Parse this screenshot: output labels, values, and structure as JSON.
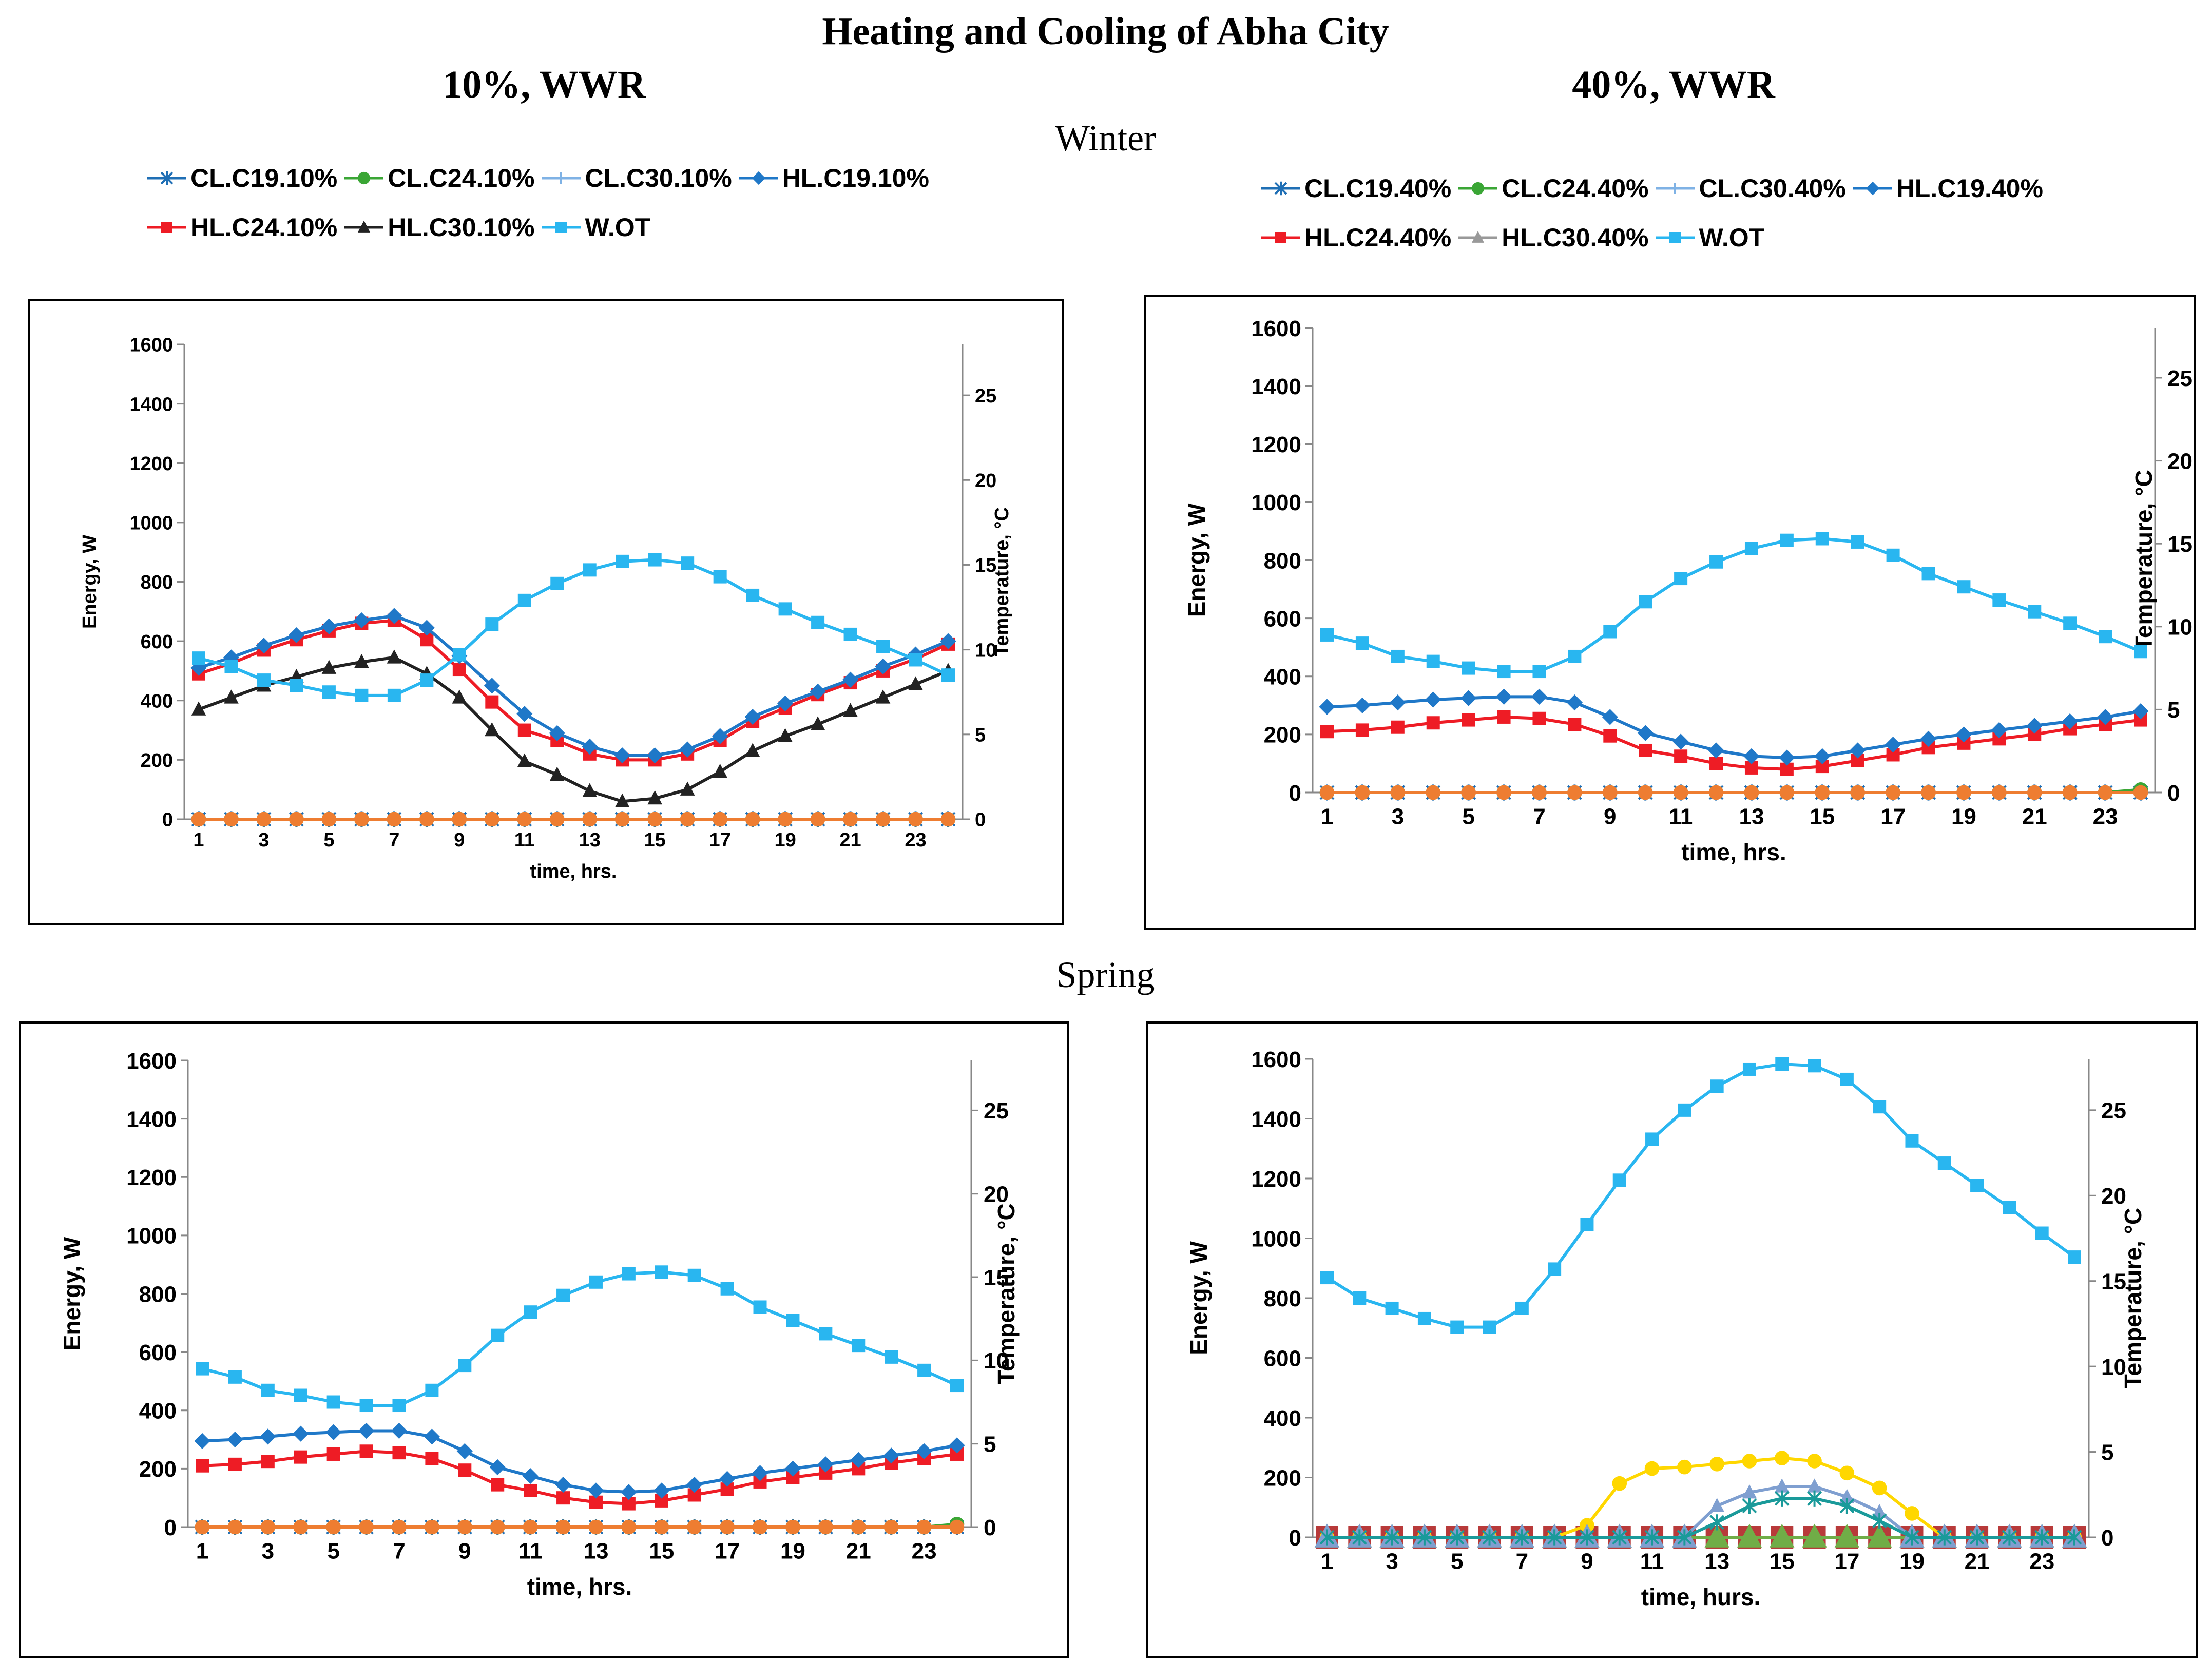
{
  "title": "Heating and Cooling of Abha City",
  "columns": {
    "left": "10%, WWR",
    "right": "40%, WWR"
  },
  "seasons": {
    "winter": "Winter",
    "spring": "Spring"
  },
  "legends": {
    "left": [
      {
        "label": "CL.C19.10%",
        "color": "#1f6fb5",
        "marker": "star"
      },
      {
        "label": "CL.C24.10%",
        "color": "#3aa635",
        "marker": "circle"
      },
      {
        "label": "CL.C30.10%",
        "color": "#7fb2e5",
        "marker": "plus"
      },
      {
        "label": "HL.C19.10%",
        "color": "#1f78c8",
        "marker": "diamond"
      },
      {
        "label": "HL.C24.10%",
        "color": "#ee1c25",
        "marker": "square"
      },
      {
        "label": "HL.C30.10%",
        "color": "#222222",
        "marker": "triangle"
      },
      {
        "label": "W.OT",
        "color": "#29b6f0",
        "marker": "square"
      }
    ],
    "right": [
      {
        "label": "CL.C19.40%",
        "color": "#1f6fb5",
        "marker": "star"
      },
      {
        "label": "CL.C24.40%",
        "color": "#3aa635",
        "marker": "circle"
      },
      {
        "label": "CL.C30.40%",
        "color": "#7fb2e5",
        "marker": "plus"
      },
      {
        "label": "HL.C19.40%",
        "color": "#1f78c8",
        "marker": "diamond"
      },
      {
        "label": "HL.C24.40%",
        "color": "#ee1c25",
        "marker": "square"
      },
      {
        "label": "HL.C30.40%",
        "color": "#999999",
        "marker": "triangle"
      },
      {
        "label": "W.OT",
        "color": "#29b6f0",
        "marker": "square"
      }
    ]
  },
  "chart_data": [
    {
      "id": "winter-10",
      "type": "line",
      "xlabel": "time, hrs.",
      "ylabel": "Energy, W",
      "y2label": "Temperature, °C",
      "x": [
        1,
        2,
        3,
        4,
        5,
        6,
        7,
        8,
        9,
        10,
        11,
        12,
        13,
        14,
        15,
        16,
        17,
        18,
        19,
        20,
        21,
        22,
        23,
        24
      ],
      "xticks": [
        "1",
        "3",
        "5",
        "7",
        "9",
        "11",
        "13",
        "15",
        "17",
        "19",
        "21",
        "23"
      ],
      "ylim": [
        0,
        1600
      ],
      "yticks": [
        "0",
        "200",
        "400",
        "600",
        "800",
        "1000",
        "1200",
        "1400",
        "1600"
      ],
      "y2lim": [
        0,
        28
      ],
      "y2ticks": [
        "0",
        "5",
        "10",
        "15",
        "20",
        "25"
      ],
      "series": [
        {
          "name": "CL.C19.10%",
          "axis": "left",
          "color": "#1f6fb5",
          "marker": "star",
          "values": [
            0,
            0,
            0,
            0,
            0,
            0,
            0,
            0,
            0,
            0,
            0,
            0,
            0,
            0,
            0,
            0,
            0,
            0,
            0,
            0,
            0,
            0,
            0,
            0
          ]
        },
        {
          "name": "CL.C24.10%",
          "axis": "left",
          "color": "#3aa635",
          "marker": "circle",
          "values": [
            0,
            0,
            0,
            0,
            0,
            0,
            0,
            0,
            0,
            0,
            0,
            0,
            0,
            0,
            0,
            0,
            0,
            0,
            0,
            0,
            0,
            0,
            0,
            0
          ]
        },
        {
          "name": "CL.C30.10%",
          "axis": "left",
          "color": "#ee7d31",
          "marker": "circle",
          "values": [
            0,
            0,
            0,
            0,
            0,
            0,
            0,
            0,
            0,
            0,
            0,
            0,
            0,
            0,
            0,
            0,
            0,
            0,
            0,
            0,
            0,
            0,
            0,
            0
          ]
        },
        {
          "name": "HL.C30.10%",
          "axis": "left",
          "color": "#222222",
          "marker": "triangle",
          "values": [
            370,
            410,
            450,
            480,
            510,
            530,
            545,
            490,
            410,
            300,
            195,
            150,
            95,
            60,
            70,
            100,
            160,
            230,
            280,
            320,
            365,
            410,
            455,
            500
          ]
        },
        {
          "name": "HL.C24.10%",
          "axis": "left",
          "color": "#ee1c25",
          "marker": "square",
          "values": [
            490,
            525,
            570,
            605,
            635,
            660,
            670,
            605,
            505,
            395,
            300,
            265,
            220,
            200,
            200,
            220,
            265,
            330,
            375,
            420,
            460,
            500,
            540,
            590
          ]
        },
        {
          "name": "HL.C19.10%",
          "axis": "left",
          "color": "#1f78c8",
          "marker": "diamond",
          "values": [
            510,
            545,
            585,
            620,
            650,
            670,
            685,
            645,
            550,
            450,
            355,
            290,
            245,
            215,
            215,
            235,
            280,
            345,
            390,
            430,
            470,
            515,
            555,
            600
          ]
        },
        {
          "name": "W.OT",
          "axis": "right",
          "color": "#29b6f0",
          "marker": "square",
          "values": [
            9.5,
            9.0,
            8.2,
            7.9,
            7.5,
            7.3,
            7.3,
            8.2,
            9.7,
            11.5,
            12.9,
            13.9,
            14.7,
            15.2,
            15.3,
            15.1,
            14.3,
            13.2,
            12.4,
            11.6,
            10.9,
            10.2,
            9.4,
            8.5
          ]
        }
      ]
    },
    {
      "id": "winter-40",
      "type": "line",
      "xlabel": "time, hrs.",
      "ylabel": "Energy, W",
      "y2label": "Temperature, °C",
      "x": [
        1,
        2,
        3,
        4,
        5,
        6,
        7,
        8,
        9,
        10,
        11,
        12,
        13,
        14,
        15,
        16,
        17,
        18,
        19,
        20,
        21,
        22,
        23,
        24
      ],
      "xticks": [
        "1",
        "3",
        "5",
        "7",
        "9",
        "11",
        "13",
        "15",
        "17",
        "19",
        "21",
        "23"
      ],
      "ylim": [
        0,
        1600
      ],
      "yticks": [
        "0",
        "200",
        "400",
        "600",
        "800",
        "1000",
        "1200",
        "1400",
        "1600"
      ],
      "y2lim": [
        0,
        28
      ],
      "y2ticks": [
        "0",
        "5",
        "10",
        "15",
        "20",
        "25"
      ],
      "series": [
        {
          "name": "CL.C19.40%",
          "axis": "left",
          "color": "#1f6fb5",
          "marker": "star",
          "values": [
            0,
            0,
            0,
            0,
            0,
            0,
            0,
            0,
            0,
            0,
            0,
            0,
            0,
            0,
            0,
            0,
            0,
            0,
            0,
            0,
            0,
            0,
            0,
            0
          ]
        },
        {
          "name": "CL.C24.40%",
          "axis": "left",
          "color": "#3aa635",
          "marker": "circle",
          "values": [
            0,
            0,
            0,
            0,
            0,
            0,
            0,
            0,
            0,
            0,
            0,
            0,
            0,
            0,
            0,
            0,
            0,
            0,
            0,
            0,
            0,
            0,
            0,
            10
          ]
        },
        {
          "name": "CL.C30.40%",
          "axis": "left",
          "color": "#ee7d31",
          "marker": "circle",
          "values": [
            0,
            0,
            0,
            0,
            0,
            0,
            0,
            0,
            0,
            0,
            0,
            0,
            0,
            0,
            0,
            0,
            0,
            0,
            0,
            0,
            0,
            0,
            0,
            0
          ]
        },
        {
          "name": "HL.C24.40%",
          "axis": "left",
          "color": "#ee1c25",
          "marker": "square",
          "values": [
            210,
            215,
            225,
            240,
            250,
            260,
            255,
            235,
            195,
            145,
            125,
            100,
            85,
            80,
            90,
            110,
            130,
            155,
            170,
            185,
            200,
            220,
            235,
            250
          ]
        },
        {
          "name": "HL.C19.40%",
          "axis": "left",
          "color": "#1f78c8",
          "marker": "diamond",
          "values": [
            295,
            300,
            310,
            320,
            325,
            330,
            330,
            310,
            260,
            205,
            175,
            145,
            125,
            120,
            125,
            145,
            165,
            185,
            200,
            215,
            230,
            245,
            260,
            280
          ]
        },
        {
          "name": "W.OT",
          "axis": "right",
          "color": "#29b6f0",
          "marker": "square",
          "values": [
            9.5,
            9.0,
            8.2,
            7.9,
            7.5,
            7.3,
            7.3,
            8.2,
            9.7,
            11.5,
            12.9,
            13.9,
            14.7,
            15.2,
            15.3,
            15.1,
            14.3,
            13.2,
            12.4,
            11.6,
            10.9,
            10.2,
            9.4,
            8.5
          ]
        }
      ]
    },
    {
      "id": "spring-10",
      "type": "line",
      "xlabel": "time, hrs.",
      "ylabel": "Energy, W",
      "y2label": "Temperature, °C",
      "x": [
        1,
        2,
        3,
        4,
        5,
        6,
        7,
        8,
        9,
        10,
        11,
        12,
        13,
        14,
        15,
        16,
        17,
        18,
        19,
        20,
        21,
        22,
        23,
        24
      ],
      "xticks": [
        "1",
        "3",
        "5",
        "7",
        "9",
        "11",
        "13",
        "15",
        "17",
        "19",
        "21",
        "23"
      ],
      "ylim": [
        0,
        1600
      ],
      "yticks": [
        "0",
        "200",
        "400",
        "600",
        "800",
        "1000",
        "1200",
        "1400",
        "1600"
      ],
      "y2lim": [
        0,
        28
      ],
      "y2ticks": [
        "0",
        "5",
        "10",
        "15",
        "20",
        "25"
      ],
      "series": [
        {
          "name": "CL.C19.10%",
          "axis": "left",
          "color": "#1f6fb5",
          "marker": "star",
          "values": [
            0,
            0,
            0,
            0,
            0,
            0,
            0,
            0,
            0,
            0,
            0,
            0,
            0,
            0,
            0,
            0,
            0,
            0,
            0,
            0,
            0,
            0,
            0,
            0
          ]
        },
        {
          "name": "CL.C24.10%",
          "axis": "left",
          "color": "#3aa635",
          "marker": "circle",
          "values": [
            0,
            0,
            0,
            0,
            0,
            0,
            0,
            0,
            0,
            0,
            0,
            0,
            0,
            0,
            0,
            0,
            0,
            0,
            0,
            0,
            0,
            0,
            0,
            10
          ]
        },
        {
          "name": "CL.C30.10%",
          "axis": "left",
          "color": "#ee7d31",
          "marker": "circle",
          "values": [
            0,
            0,
            0,
            0,
            0,
            0,
            0,
            0,
            0,
            0,
            0,
            0,
            0,
            0,
            0,
            0,
            0,
            0,
            0,
            0,
            0,
            0,
            0,
            0
          ]
        },
        {
          "name": "HL.C24.10%",
          "axis": "left",
          "color": "#ee1c25",
          "marker": "square",
          "values": [
            210,
            215,
            225,
            240,
            250,
            260,
            255,
            235,
            195,
            145,
            125,
            100,
            85,
            80,
            90,
            110,
            130,
            155,
            170,
            185,
            200,
            220,
            235,
            250
          ]
        },
        {
          "name": "HL.C19.10%",
          "axis": "left",
          "color": "#1f78c8",
          "marker": "diamond",
          "values": [
            295,
            300,
            310,
            320,
            325,
            330,
            330,
            310,
            260,
            205,
            175,
            145,
            125,
            120,
            125,
            145,
            165,
            185,
            200,
            215,
            230,
            245,
            260,
            280
          ]
        },
        {
          "name": "W.OT",
          "axis": "right",
          "color": "#29b6f0",
          "marker": "square",
          "values": [
            9.5,
            9.0,
            8.2,
            7.9,
            7.5,
            7.3,
            7.3,
            8.2,
            9.7,
            11.5,
            12.9,
            13.9,
            14.7,
            15.2,
            15.3,
            15.1,
            14.3,
            13.2,
            12.4,
            11.6,
            10.9,
            10.2,
            9.4,
            8.5
          ]
        }
      ]
    },
    {
      "id": "spring-40",
      "type": "line",
      "xlabel": "time, hurs.",
      "ylabel": "Energy, W",
      "y2label": "Temperature, °C",
      "x": [
        1,
        2,
        3,
        4,
        5,
        6,
        7,
        8,
        9,
        10,
        11,
        12,
        13,
        14,
        15,
        16,
        17,
        18,
        19,
        20,
        21,
        22,
        23,
        24
      ],
      "xticks": [
        "1",
        "3",
        "5",
        "7",
        "9",
        "11",
        "13",
        "15",
        "17",
        "19",
        "21",
        "23"
      ],
      "ylim": [
        0,
        1600
      ],
      "yticks": [
        "0",
        "200",
        "400",
        "600",
        "800",
        "1000",
        "1200",
        "1400",
        "1600"
      ],
      "y2lim": [
        0,
        28
      ],
      "y2ticks": [
        "0",
        "5",
        "10",
        "15",
        "20",
        "25"
      ],
      "series": [
        {
          "name": "HL.C24.40%",
          "axis": "left",
          "color": "#b83a3a",
          "marker": "square",
          "values": [
            0,
            0,
            0,
            0,
            0,
            0,
            0,
            0,
            0,
            0,
            0,
            0,
            0,
            0,
            0,
            0,
            0,
            0,
            0,
            0,
            0,
            0,
            0,
            0
          ]
        },
        {
          "name": "CL.C24.40%",
          "axis": "left",
          "color": "#70ad47",
          "marker": "triangle",
          "values": [
            0,
            0,
            0,
            0,
            0,
            0,
            0,
            0,
            0,
            0,
            0,
            0,
            0,
            0,
            0,
            0,
            0,
            0,
            0,
            0,
            0,
            0,
            0,
            0
          ]
        },
        {
          "name": "CL.C19.40%",
          "axis": "left",
          "color": "#ffd700",
          "marker": "circle",
          "values": [
            0,
            0,
            0,
            0,
            0,
            0,
            0,
            0,
            40,
            180,
            230,
            235,
            245,
            255,
            265,
            255,
            215,
            165,
            80,
            0,
            0,
            0,
            0,
            0
          ]
        },
        {
          "name": "CL.C30.40%",
          "axis": "left",
          "color": "#7f9fd0",
          "marker": "triangle",
          "values": [
            0,
            0,
            0,
            0,
            0,
            0,
            0,
            0,
            0,
            0,
            0,
            0,
            105,
            150,
            170,
            170,
            135,
            85,
            0,
            0,
            0,
            0,
            0,
            0
          ]
        },
        {
          "name": "HL.C19.40%",
          "axis": "left",
          "color": "#1a9a9a",
          "marker": "star",
          "values": [
            0,
            0,
            0,
            0,
            0,
            0,
            0,
            0,
            0,
            0,
            0,
            0,
            50,
            105,
            130,
            130,
            105,
            55,
            0,
            0,
            0,
            0,
            0,
            0
          ]
        },
        {
          "name": "W.OT",
          "axis": "right",
          "color": "#29b6f0",
          "marker": "square",
          "values": [
            15.2,
            14.0,
            13.4,
            12.8,
            12.3,
            12.3,
            13.4,
            15.7,
            18.3,
            20.9,
            23.3,
            25.0,
            26.4,
            27.4,
            27.7,
            27.6,
            26.8,
            25.2,
            23.2,
            21.9,
            20.6,
            19.3,
            17.8,
            16.4
          ]
        }
      ]
    }
  ]
}
